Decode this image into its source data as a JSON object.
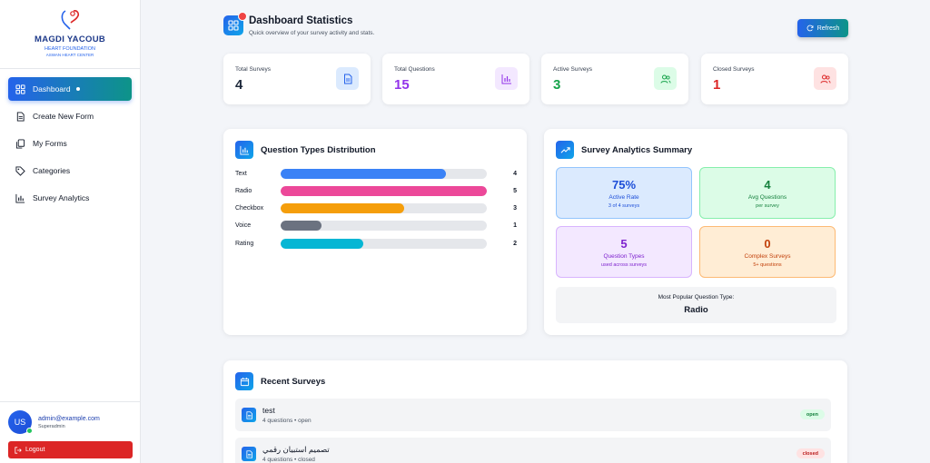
{
  "brand": {
    "name": "MAGDI YACOUB",
    "subtitle": "HEART FOUNDATION",
    "subtitle2": "ASWAN HEART CENTER"
  },
  "sidebar": {
    "items": [
      {
        "label": "Dashboard",
        "icon": "dashboard-icon",
        "active": true
      },
      {
        "label": "Create New Form",
        "icon": "document-icon"
      },
      {
        "label": "My Forms",
        "icon": "copy-icon"
      },
      {
        "label": "Categories",
        "icon": "tag-icon"
      },
      {
        "label": "Survey Analytics",
        "icon": "bar-chart-icon"
      }
    ]
  },
  "user": {
    "initials": "US",
    "email": "admin@example.com",
    "role": "Superadmin",
    "logout_label": "Logout"
  },
  "header": {
    "title": "Dashboard Statistics",
    "subtitle": "Quick overview of your survey activity and stats.",
    "refresh_label": "Refresh"
  },
  "stats": [
    {
      "label": "Total Surveys",
      "value": "4",
      "color": "#1e293b",
      "icon": "file-icon",
      "icon_bg": "#dbeafe",
      "icon_color": "#2563eb"
    },
    {
      "label": "Total Questions",
      "value": "15",
      "color": "#9333ea",
      "icon": "bar-chart-icon",
      "icon_bg": "#f3e8ff",
      "icon_color": "#9333ea"
    },
    {
      "label": "Active Surveys",
      "value": "3",
      "color": "#16a34a",
      "icon": "users-icon",
      "icon_bg": "#dcfce7",
      "icon_color": "#16a34a"
    },
    {
      "label": "Closed Surveys",
      "value": "1",
      "color": "#dc2626",
      "icon": "users-icon",
      "icon_bg": "#fee2e2",
      "icon_color": "#dc2626"
    }
  ],
  "distribution": {
    "title": "Question Types Distribution",
    "max": 5,
    "rows": [
      {
        "label": "Text",
        "count": 4,
        "color": "#3b82f6"
      },
      {
        "label": "Radio",
        "count": 5,
        "color": "#ec4899"
      },
      {
        "label": "Checkbox",
        "count": 3,
        "color": "#f59e0b"
      },
      {
        "label": "Voice",
        "count": 1,
        "color": "#6b7280"
      },
      {
        "label": "Rating",
        "count": 2,
        "color": "#06b6d4"
      }
    ]
  },
  "summary": {
    "title": "Survey Analytics Summary",
    "boxes": [
      {
        "big": "75%",
        "mid": "Active Rate",
        "small": "3 of 4 surveys",
        "bg": "#dbeafe",
        "border": "#93c5fd",
        "color": "#1d4ed8"
      },
      {
        "big": "4",
        "mid": "Avg Questions",
        "small": "per survey",
        "bg": "#dcfce7",
        "border": "#86efac",
        "color": "#15803d"
      },
      {
        "big": "5",
        "mid": "Question Types",
        "small": "used across surveys",
        "bg": "#f3e8ff",
        "border": "#d8b4fe",
        "color": "#7e22ce"
      },
      {
        "big": "0",
        "mid": "Complex Surveys",
        "small": "5+ questions",
        "bg": "#ffedd5",
        "border": "#fdba74",
        "color": "#c2410c"
      }
    ],
    "popular_label": "Most Popular Question Type:",
    "popular_value": "Radio"
  },
  "recent": {
    "title": "Recent Surveys",
    "items": [
      {
        "name": "test",
        "meta": "4 questions • open",
        "status": "open",
        "status_bg": "#dcfce7",
        "status_color": "#15803d"
      },
      {
        "name": "تصميم استبيان رقمي",
        "meta": "4 questions • closed",
        "status": "closed",
        "status_bg": "#fee2e2",
        "status_color": "#b91c1c"
      }
    ]
  }
}
